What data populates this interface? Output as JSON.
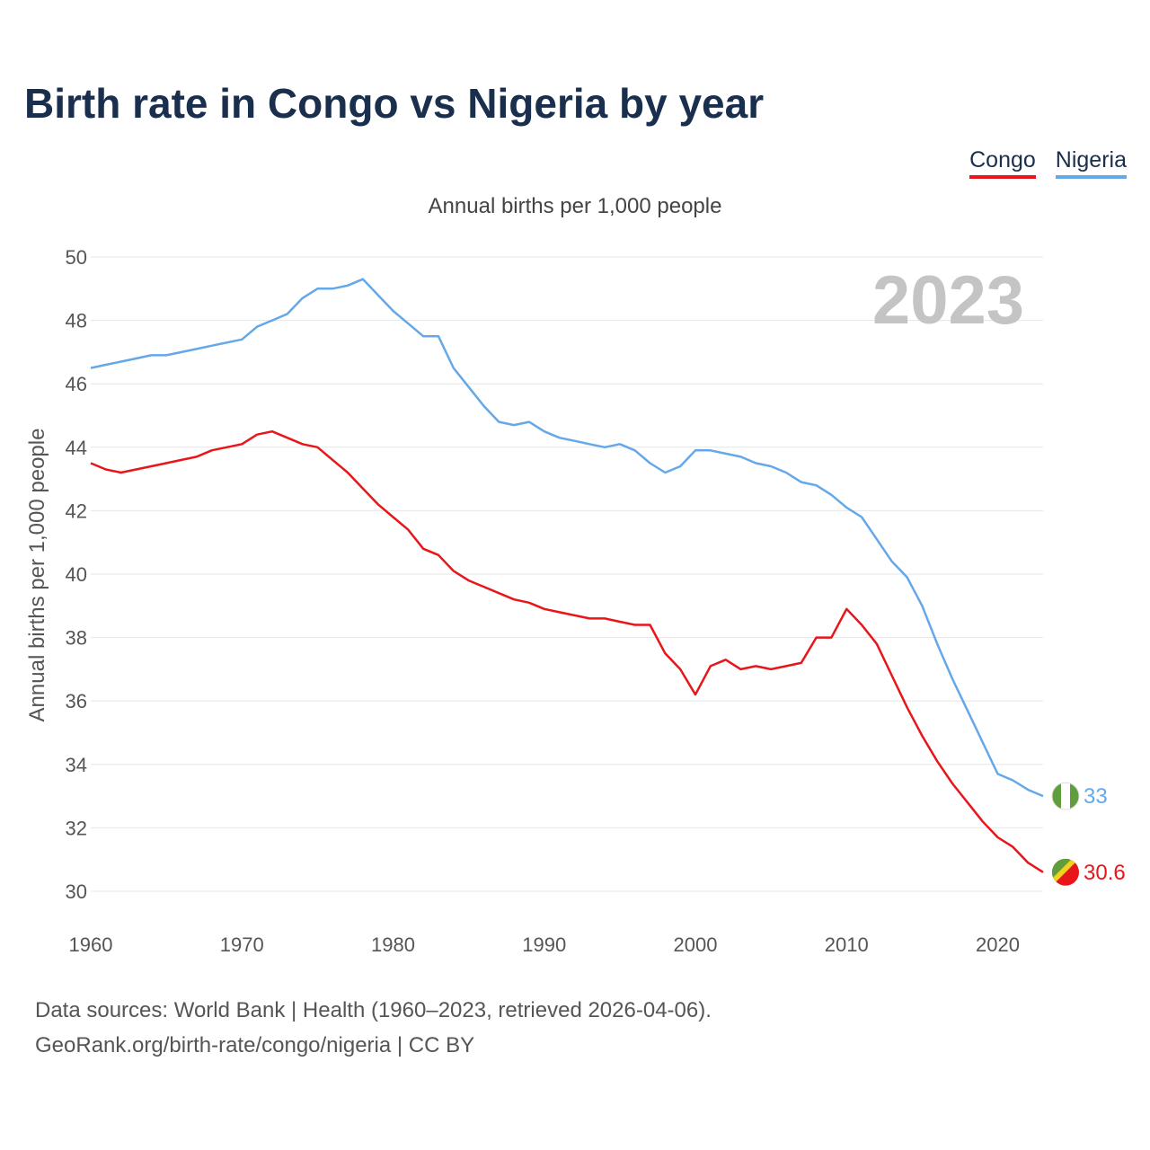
{
  "title": "Birth rate in Congo vs Nigeria by year",
  "legend": [
    {
      "label": "Congo",
      "color": "#e8161a"
    },
    {
      "label": "Nigeria",
      "color": "#64a8e8"
    }
  ],
  "subtitle": "Annual births per 1,000 people",
  "year_label": "2023",
  "footer": {
    "line1": "Data sources: World Bank | Health (1960–2023, retrieved 2026-04-06).",
    "line2": "GeoRank.org/birth-rate/congo/nigeria | CC BY"
  },
  "chart_data": {
    "type": "line",
    "title": "Birth rate in Congo vs Nigeria by year",
    "xlabel": "",
    "ylabel": "Annual births per 1,000 people",
    "xlim": [
      1960,
      2023
    ],
    "ylim": [
      30,
      50
    ],
    "xticks": [
      1960,
      1970,
      1980,
      1990,
      2000,
      2010,
      2020
    ],
    "yticks": [
      30,
      32,
      34,
      36,
      38,
      40,
      42,
      44,
      46,
      48,
      50
    ],
    "grid": true,
    "legend_position": "top-right",
    "x": [
      1960,
      1961,
      1962,
      1963,
      1964,
      1965,
      1966,
      1967,
      1968,
      1969,
      1970,
      1971,
      1972,
      1973,
      1974,
      1975,
      1976,
      1977,
      1978,
      1979,
      1980,
      1981,
      1982,
      1983,
      1984,
      1985,
      1986,
      1987,
      1988,
      1989,
      1990,
      1991,
      1992,
      1993,
      1994,
      1995,
      1996,
      1997,
      1998,
      1999,
      2000,
      2001,
      2002,
      2003,
      2004,
      2005,
      2006,
      2007,
      2008,
      2009,
      2010,
      2011,
      2012,
      2013,
      2014,
      2015,
      2016,
      2017,
      2018,
      2019,
      2020,
      2021,
      2022,
      2023
    ],
    "series": [
      {
        "name": "Congo",
        "color": "#e8161a",
        "end_label": "30.6",
        "values": [
          43.5,
          43.3,
          43.2,
          43.3,
          43.4,
          43.5,
          43.6,
          43.7,
          43.9,
          44.0,
          44.1,
          44.4,
          44.5,
          44.3,
          44.1,
          44.0,
          43.6,
          43.2,
          42.7,
          42.2,
          41.8,
          41.4,
          40.8,
          40.6,
          40.1,
          39.8,
          39.6,
          39.4,
          39.2,
          39.1,
          38.9,
          38.8,
          38.7,
          38.6,
          38.6,
          38.5,
          38.4,
          38.4,
          37.5,
          37.0,
          36.2,
          37.1,
          37.3,
          37.0,
          37.1,
          37.0,
          37.1,
          37.2,
          38.0,
          38.0,
          38.9,
          38.4,
          37.8,
          36.8,
          35.8,
          34.9,
          34.1,
          33.4,
          32.8,
          32.2,
          31.7,
          31.4,
          30.9,
          30.6
        ]
      },
      {
        "name": "Nigeria",
        "color": "#64a8e8",
        "end_label": "33",
        "values": [
          46.5,
          46.6,
          46.7,
          46.8,
          46.9,
          46.9,
          47.0,
          47.1,
          47.2,
          47.3,
          47.4,
          47.8,
          48.0,
          48.2,
          48.7,
          49.0,
          49.0,
          49.1,
          49.3,
          48.8,
          48.3,
          47.9,
          47.5,
          47.5,
          46.5,
          45.9,
          45.3,
          44.8,
          44.7,
          44.8,
          44.5,
          44.3,
          44.2,
          44.1,
          44.0,
          44.1,
          43.9,
          43.5,
          43.2,
          43.4,
          43.9,
          43.9,
          43.8,
          43.7,
          43.5,
          43.4,
          43.2,
          42.9,
          42.8,
          42.5,
          42.1,
          41.8,
          41.1,
          40.4,
          39.9,
          39.0,
          37.8,
          36.7,
          35.7,
          34.7,
          33.7,
          33.5,
          33.2,
          33.0
        ]
      }
    ]
  }
}
